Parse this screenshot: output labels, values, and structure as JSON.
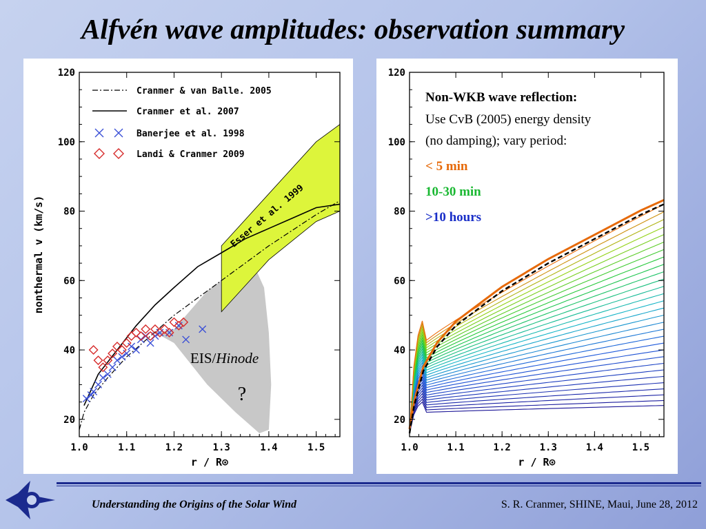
{
  "slide": {
    "title": "Alfvén wave amplitudes:  observation summary",
    "footer_left": "Understanding the Origins of the Solar Wind",
    "footer_right": "S. R. Cranmer, SHINE, Maui, June 28, 2012"
  },
  "chart_data": [
    {
      "type": "line",
      "xlabel": "r / R⊙",
      "ylabel": "nonthermal v  (km/s)",
      "xlim": [
        1.0,
        1.55
      ],
      "ylim": [
        15,
        120
      ],
      "xticks": [
        "1.0",
        "1.1",
        "1.2",
        "1.3",
        "1.4",
        "1.5"
      ],
      "yticks": [
        "20",
        "40",
        "60",
        "80",
        "100",
        "120"
      ],
      "legend_position": "top-left",
      "legend": [
        {
          "label": "Cranmer & van Balle. 2005",
          "style": "dash-dot",
          "color": "#000000"
        },
        {
          "label": "Cranmer et al. 2007",
          "style": "solid",
          "color": "#000000"
        },
        {
          "label": "Banerjee et al. 1998",
          "marker": "x",
          "color": "#3a4fd6"
        },
        {
          "label": "Landi & Cranmer 2009",
          "marker": "diamond",
          "color": "#d62b2b"
        }
      ],
      "series": [
        {
          "name": "Cranmer & van Balle. 2005",
          "x": [
            1.0,
            1.01,
            1.03,
            1.06,
            1.1,
            1.15,
            1.2,
            1.3,
            1.4,
            1.5,
            1.55
          ],
          "y": [
            17,
            22,
            27,
            32,
            38,
            44,
            50,
            60,
            70,
            79,
            83
          ]
        },
        {
          "name": "Cranmer et al. 2007",
          "x": [
            1.01,
            1.04,
            1.08,
            1.12,
            1.16,
            1.2,
            1.25,
            1.3,
            1.35,
            1.4,
            1.45,
            1.5,
            1.55
          ],
          "y": [
            24,
            33,
            40,
            47,
            53,
            58,
            64,
            68,
            72,
            75,
            78,
            81,
            82
          ]
        },
        {
          "name": "Banerjee et al. 1998",
          "x": [
            1.015,
            1.025,
            1.03,
            1.04,
            1.05,
            1.06,
            1.07,
            1.08,
            1.09,
            1.1,
            1.11,
            1.12,
            1.13,
            1.14,
            1.15,
            1.16,
            1.17,
            1.19,
            1.21,
            1.225,
            1.26
          ],
          "y": [
            26,
            27,
            28,
            30,
            32,
            33,
            35,
            37,
            38,
            39,
            41,
            40,
            43,
            44,
            42,
            44,
            45,
            45,
            47,
            43,
            46
          ]
        },
        {
          "name": "Landi & Cranmer 2009",
          "x": [
            1.03,
            1.04,
            1.05,
            1.06,
            1.07,
            1.08,
            1.09,
            1.1,
            1.11,
            1.12,
            1.13,
            1.14,
            1.15,
            1.16,
            1.17,
            1.18,
            1.19,
            1.2,
            1.21,
            1.22
          ],
          "y": [
            40,
            37,
            35,
            37,
            39,
            41,
            40,
            42,
            44,
            45,
            44,
            46,
            44,
            46,
            45,
            46,
            45,
            48,
            47,
            48
          ]
        }
      ],
      "bands": [
        {
          "name": "Esser et al. 1999",
          "color": "#ddf53b",
          "x": [
            1.3,
            1.4,
            1.5,
            1.55
          ],
          "y_low": [
            51,
            66,
            77,
            80
          ],
          "y_high": [
            70,
            85,
            100,
            105
          ]
        },
        {
          "name": "EIS/Hinode ?",
          "color": "#c8c8c8"
        }
      ],
      "annotations": {
        "band": "Esser et al. 1999",
        "eis": "EIS/",
        "eis_italic": "Hinode",
        "question": "?"
      }
    },
    {
      "type": "line",
      "xlabel": "r / R⊙",
      "xlim": [
        1.0,
        1.55
      ],
      "ylim": [
        15,
        120
      ],
      "xticks": [
        "1.0",
        "1.1",
        "1.2",
        "1.3",
        "1.4",
        "1.5"
      ],
      "yticks": [
        "20",
        "40",
        "60",
        "80",
        "100",
        "120"
      ],
      "title": "Non-WKB wave reflection:",
      "annotation_lines": [
        "Use CvB (2005) energy density",
        "(no damping);  vary period:"
      ],
      "period_labels": [
        {
          "text": "< 5 min",
          "color": "#e66a0a"
        },
        {
          "text": "10-30 min",
          "color": "#1ab832"
        },
        {
          "text": ">10 hours",
          "color": "#1a2fc8"
        }
      ],
      "curve_family": {
        "count": 30,
        "end_values_at_1_55": [
          24,
          82
        ],
        "description": "period-dependent curves from short (orange) to long (blue)"
      },
      "reference_curve": {
        "style": "dashed",
        "color": "#000000",
        "x": [
          1.0,
          1.01,
          1.03,
          1.06,
          1.1,
          1.15,
          1.2,
          1.3,
          1.4,
          1.5,
          1.55
        ],
        "y": [
          16,
          24,
          34,
          41,
          47,
          52,
          57,
          65,
          72,
          79,
          82
        ]
      }
    }
  ]
}
